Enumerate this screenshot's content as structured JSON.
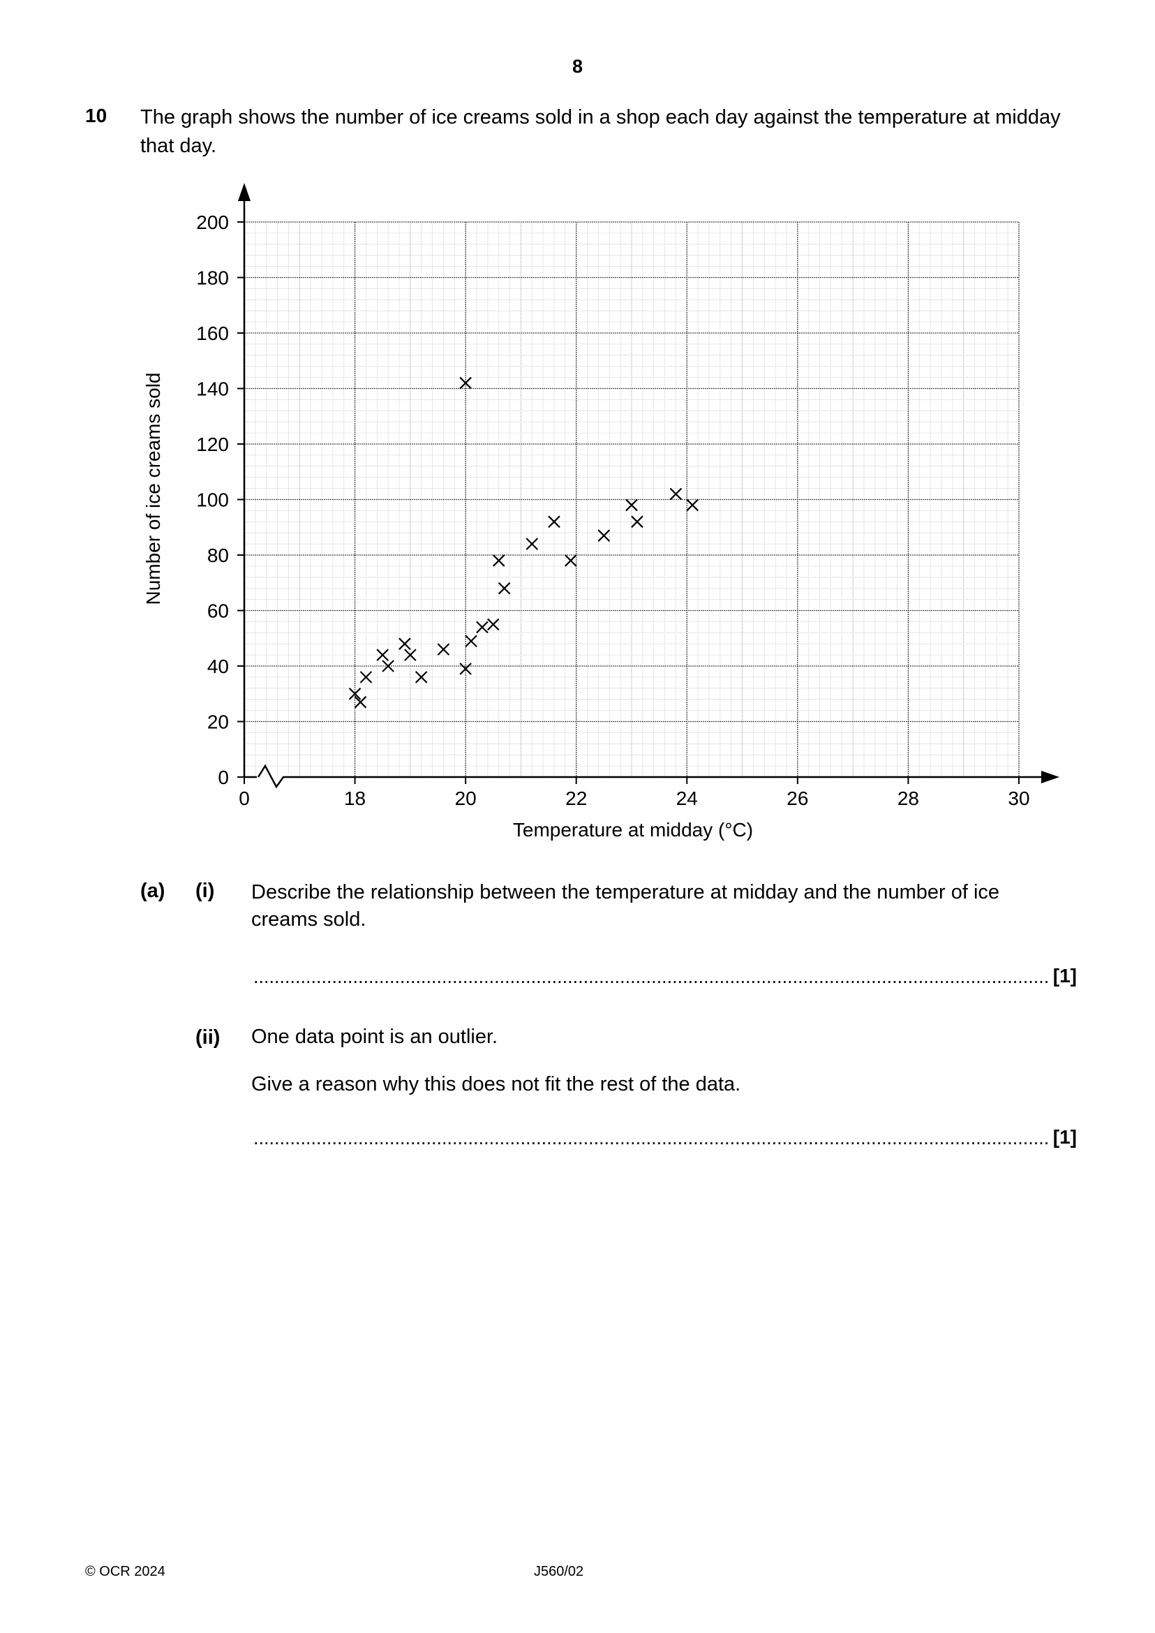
{
  "page": {
    "page_number": "8",
    "question_number": "10",
    "question_text": "The graph shows the number of ice creams sold in a shop each day against the temperature at midday that day.",
    "parts": {
      "a_label": "(a)",
      "i_label": "(i)",
      "i_text": "Describe the relationship between the temperature at midday and the number of ice creams sold.",
      "i_marks": "[1]",
      "ii_label": "(ii)",
      "ii_text": "One data point is an outlier.",
      "ii_prompt": "Give a reason why this does not fit the rest of the data.",
      "ii_marks": "[1]"
    },
    "answer_dots": "..........................................................................................................................................................................................",
    "footer_left": "© OCR 2024",
    "footer_center": "J560/02"
  },
  "chart_data": {
    "type": "scatter",
    "xlabel": "Temperature at midday (°C)",
    "ylabel": "Number of ice creams sold",
    "xlim": [
      16,
      30
    ],
    "ylim": [
      0,
      200
    ],
    "x_axis_break": true,
    "x_ticks": [
      "0",
      "18",
      "20",
      "22",
      "24",
      "26",
      "28",
      "30"
    ],
    "x_tick_values": [
      16,
      18,
      20,
      22,
      24,
      26,
      28,
      30
    ],
    "y_ticks": [
      0,
      20,
      40,
      60,
      80,
      100,
      120,
      140,
      160,
      180,
      200
    ],
    "grid": true,
    "marker": "x",
    "points": [
      {
        "x": 18.0,
        "y": 30
      },
      {
        "x": 18.1,
        "y": 27
      },
      {
        "x": 18.2,
        "y": 36
      },
      {
        "x": 18.5,
        "y": 44
      },
      {
        "x": 18.6,
        "y": 40
      },
      {
        "x": 18.9,
        "y": 48
      },
      {
        "x": 19.0,
        "y": 44
      },
      {
        "x": 19.2,
        "y": 36
      },
      {
        "x": 19.6,
        "y": 46
      },
      {
        "x": 20.0,
        "y": 39
      },
      {
        "x": 20.1,
        "y": 49
      },
      {
        "x": 20.3,
        "y": 54
      },
      {
        "x": 20.5,
        "y": 55
      },
      {
        "x": 20.6,
        "y": 78
      },
      {
        "x": 20.7,
        "y": 68
      },
      {
        "x": 20.0,
        "y": 142
      },
      {
        "x": 21.2,
        "y": 84
      },
      {
        "x": 21.6,
        "y": 92
      },
      {
        "x": 21.9,
        "y": 78
      },
      {
        "x": 22.5,
        "y": 87
      },
      {
        "x": 23.0,
        "y": 98
      },
      {
        "x": 23.1,
        "y": 92
      },
      {
        "x": 23.8,
        "y": 102
      },
      {
        "x": 24.1,
        "y": 98
      }
    ]
  }
}
